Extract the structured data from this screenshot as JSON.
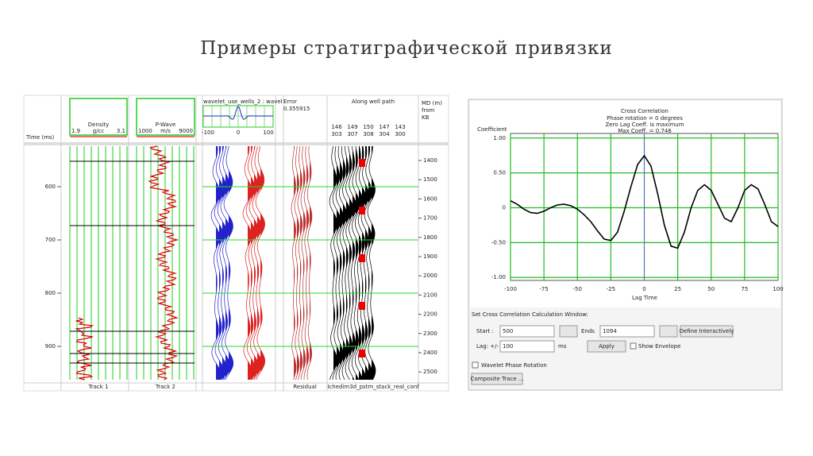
{
  "title": "Примеры стратиграфической привязки",
  "left_panel": {
    "time_label": "Time (ms)",
    "time_ticks": [
      600,
      700,
      800,
      900
    ],
    "tracks": [
      {
        "name": "Density",
        "min": "1.9",
        "unit": "g/cc",
        "max": "3.1",
        "footer": "Track 1"
      },
      {
        "name": "P-Wave",
        "min": "1000",
        "unit": "m/s",
        "max": "9000",
        "footer": "Track 2"
      }
    ],
    "wavelet": {
      "title": "wavelet_use_wells_2 : wavel",
      "ticks": [
        -100,
        0,
        100
      ]
    },
    "error": {
      "label": "Error",
      "value": "0.355915"
    },
    "residual_footer": "Residual",
    "seismic": {
      "title": "Along well path",
      "trace_top": [
        "146",
        "149",
        "150",
        "147",
        "143"
      ],
      "trace_bottom": [
        "303",
        "307",
        "308",
        "304",
        "300"
      ],
      "footer": "Ichedim3d_pstm_stack_real_conf"
    },
    "depth": {
      "label_lines": [
        "MD (m)",
        "from",
        "KB"
      ],
      "ticks": [
        1400,
        1500,
        1600,
        1700,
        1800,
        1900,
        2000,
        2100,
        2200,
        2300,
        2400,
        2500
      ]
    }
  },
  "chart_data": {
    "type": "line",
    "title": "Cross Correlation",
    "annotations": [
      "Phase rotation = 0 degrees",
      "Zero Lag Coeff. is maximum",
      "Max Coeff. = 0.746"
    ],
    "ylabel": "Coefficient",
    "xlabel": "Lag Time",
    "x": [
      -100,
      -95,
      -90,
      -85,
      -80,
      -75,
      -70,
      -65,
      -60,
      -55,
      -50,
      -45,
      -40,
      -35,
      -30,
      -25,
      -20,
      -15,
      -10,
      -5,
      0,
      5,
      10,
      15,
      20,
      25,
      30,
      35,
      40,
      45,
      50,
      55,
      60,
      65,
      70,
      75,
      80,
      85,
      90,
      95,
      100
    ],
    "values": [
      0.1,
      0.05,
      -0.02,
      -0.07,
      -0.08,
      -0.05,
      0.0,
      0.04,
      0.05,
      0.03,
      -0.02,
      -0.1,
      -0.2,
      -0.33,
      -0.45,
      -0.47,
      -0.35,
      -0.05,
      0.3,
      0.62,
      0.746,
      0.6,
      0.2,
      -0.25,
      -0.55,
      -0.58,
      -0.35,
      0.0,
      0.25,
      0.33,
      0.25,
      0.05,
      -0.15,
      -0.2,
      0.0,
      0.25,
      0.33,
      0.27,
      0.05,
      -0.2,
      -0.27
    ],
    "color": "#000000",
    "xlim": [
      -100,
      100
    ],
    "xticks": [
      -100,
      -75,
      -50,
      -25,
      0,
      25,
      50,
      75,
      100
    ],
    "ylim": [
      -1.02,
      1.02
    ],
    "yticks": [
      {
        "value": 1,
        "label": "1.00"
      },
      {
        "value": 0.5,
        "label": "0.50"
      },
      0,
      {
        "value": -0.5,
        "label": "-0.50"
      },
      {
        "value": -1,
        "label": "-1.00"
      }
    ],
    "grid": true,
    "grid_color": "#22bb22"
  },
  "controls": {
    "section_label": "Set Cross Correlation Calculation Window:",
    "start_label": "Start :",
    "start_value": "500",
    "ends_label": "Ends",
    "ends_value": "1094",
    "define_button": "Define Interactively",
    "lag_label": "Lag: +/-",
    "lag_value": "100",
    "lag_unit": "ms",
    "apply_button": "Apply",
    "envelope_checkbox": "Show Envelope",
    "phase_checkbox": "Wavelet Phase Rotation",
    "composite_button": "Composite Trace ..."
  }
}
